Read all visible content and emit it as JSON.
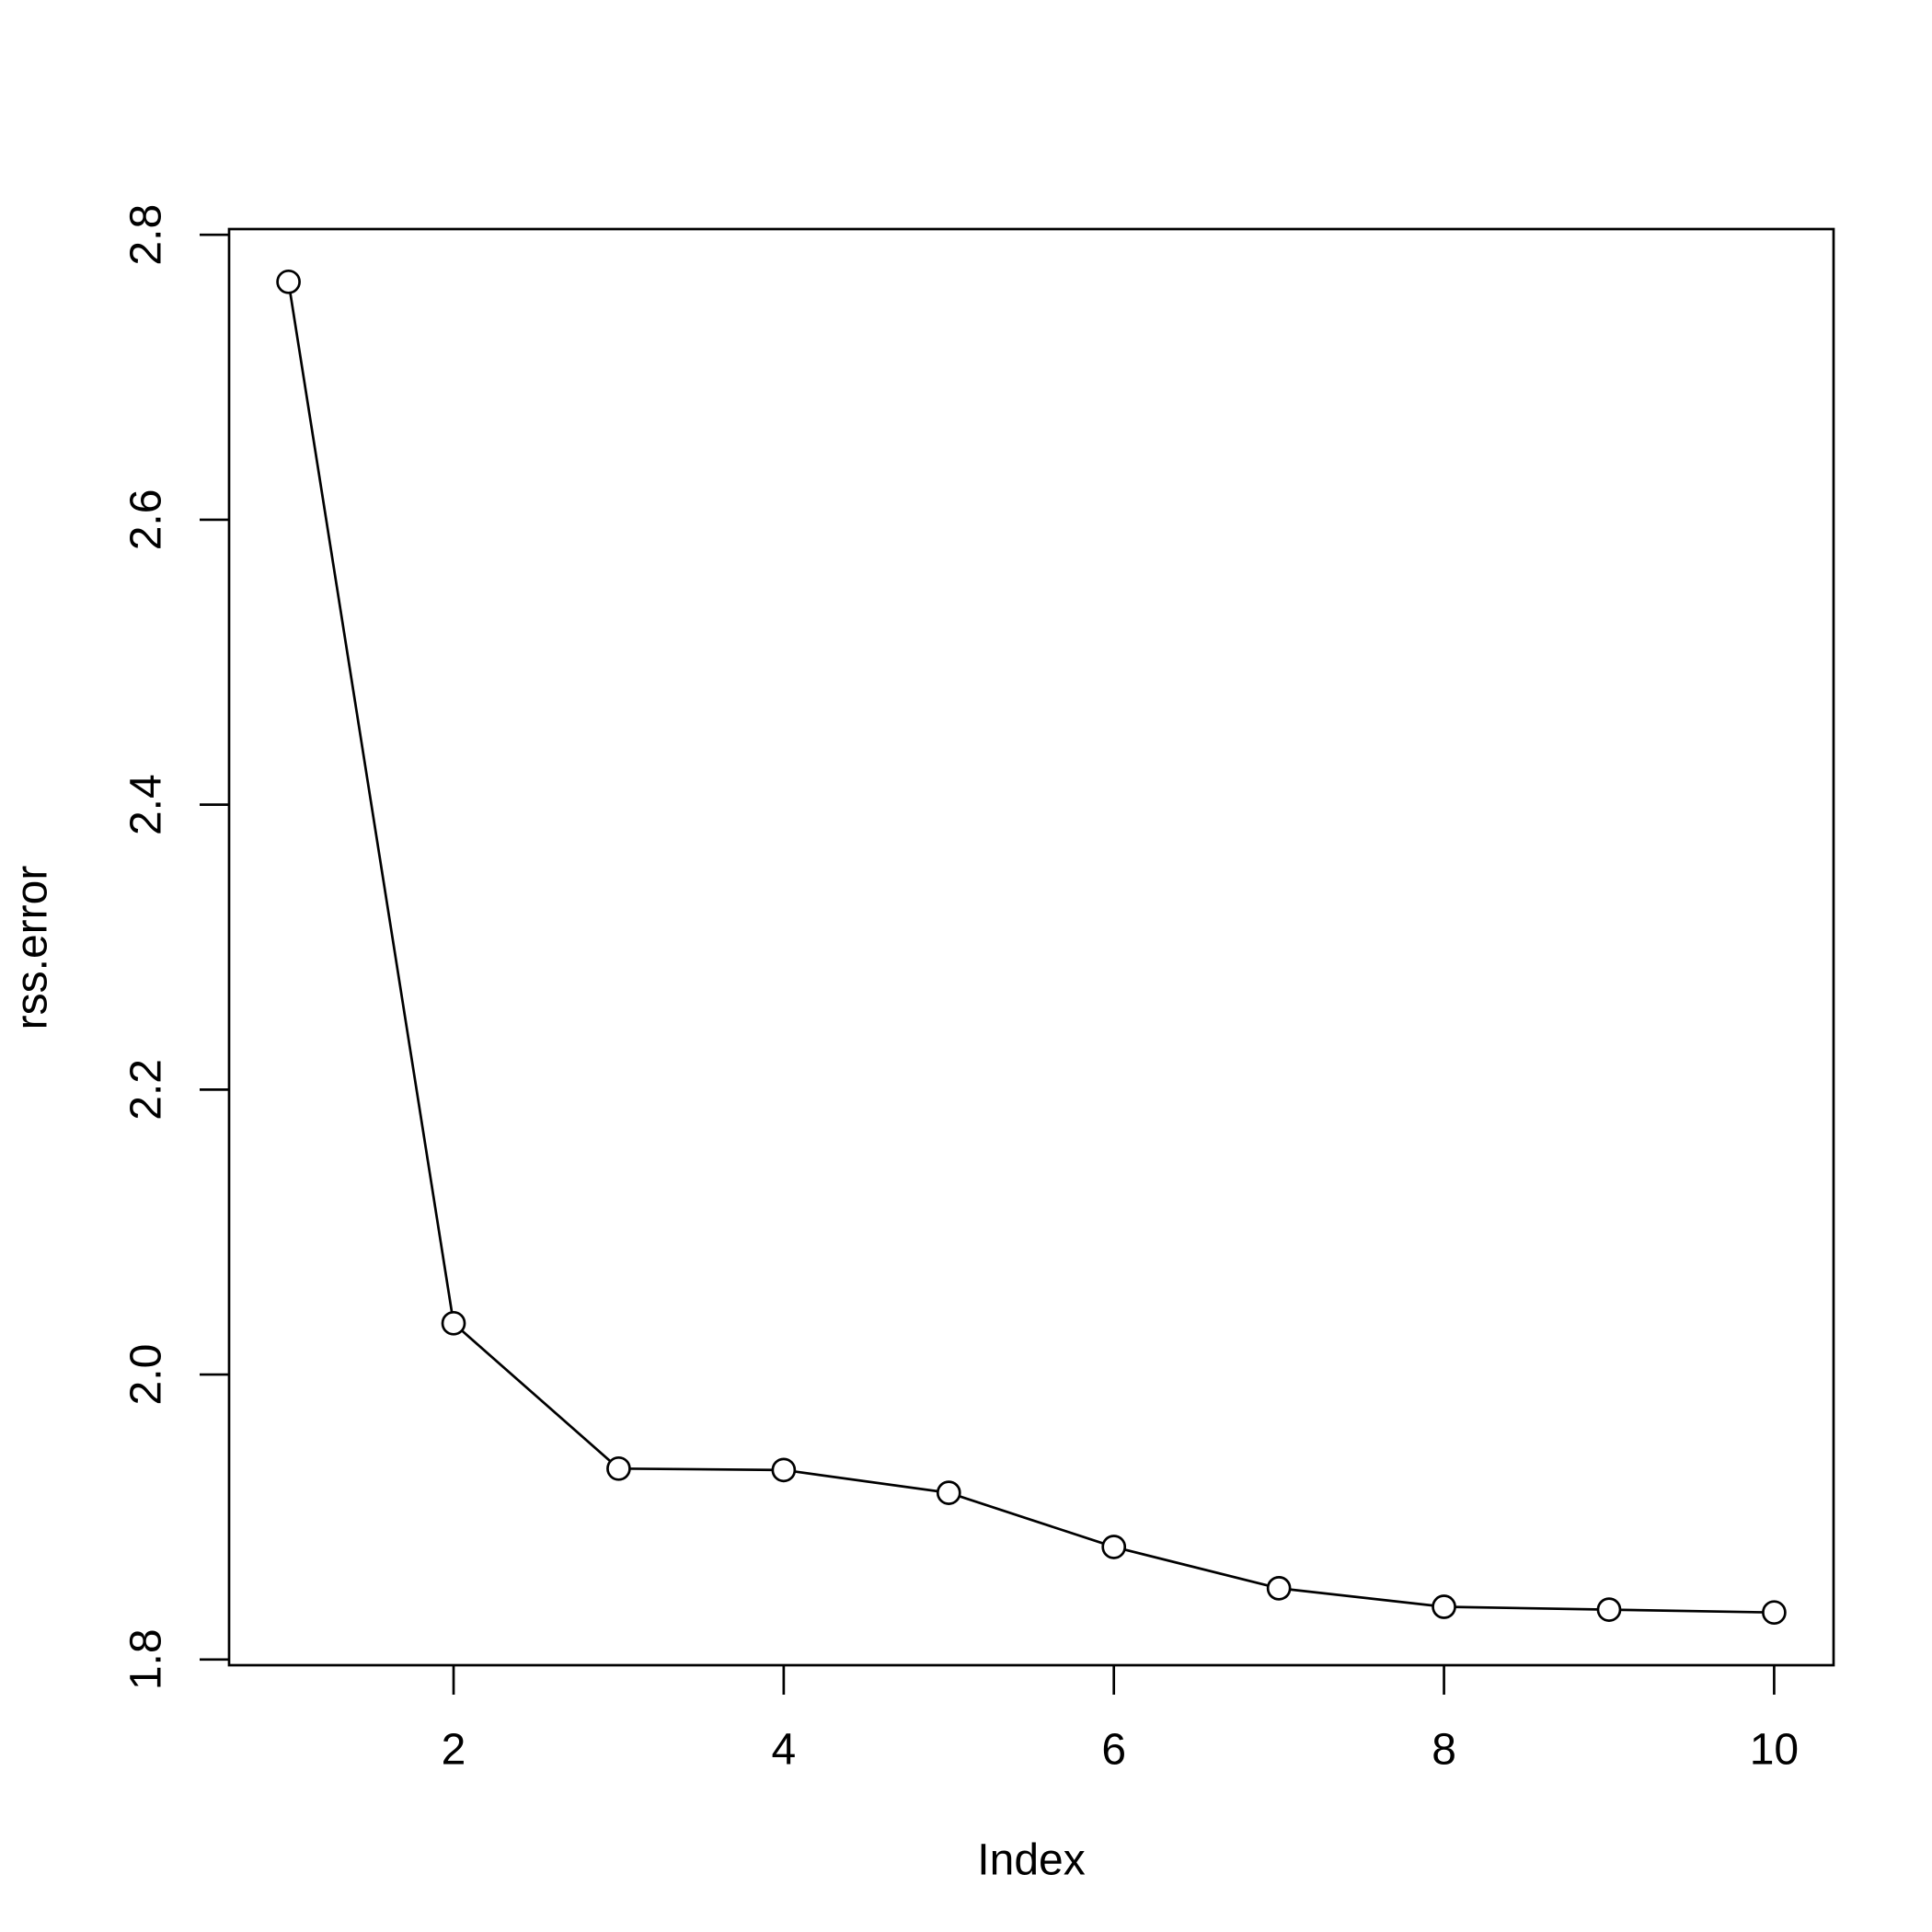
{
  "chart_data": {
    "type": "line",
    "x_label": "Index",
    "y_label": "rss.error",
    "x": [
      1,
      2,
      3,
      4,
      5,
      6,
      7,
      8,
      9,
      10
    ],
    "values": [
      2.767,
      2.036,
      1.934,
      1.933,
      1.917,
      1.879,
      1.85,
      1.837,
      1.835,
      1.833
    ],
    "color": "#000000",
    "markers": true,
    "xlim": [
      0.64,
      10.36
    ],
    "xticks": [
      2,
      4,
      6,
      8,
      10
    ],
    "ylim": [
      1.796,
      2.804
    ],
    "yticks": [
      1.8,
      {
        "value": 2,
        "label": "2.0"
      },
      2.2,
      2.4,
      2.6,
      2.8
    ],
    "grid": false
  }
}
